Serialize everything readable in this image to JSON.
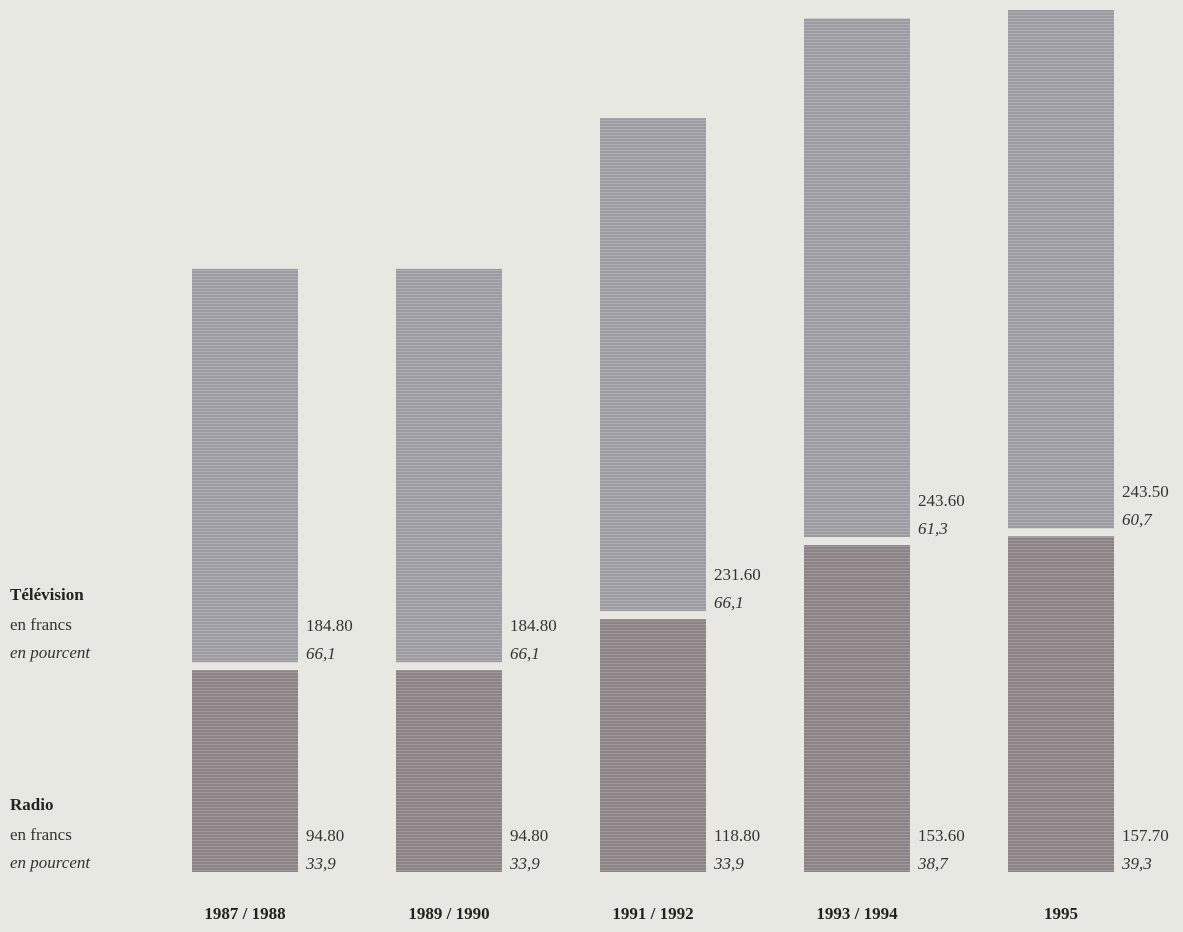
{
  "chart_data": {
    "type": "stacked-bar",
    "categories": [
      "1987 / 1988",
      "1989 / 1990",
      "1991 / 1992",
      "1993 / 1994",
      "1995"
    ],
    "series": [
      {
        "name": "Radio",
        "units": [
          "en francs",
          "en pourcent"
        ],
        "color": "#8b8386",
        "values": [
          94.8,
          94.8,
          118.8,
          153.6,
          157.7
        ],
        "value_labels": [
          "94.80",
          "94.80",
          "118.80",
          "153.60",
          "157.70"
        ],
        "percent": [
          33.9,
          33.9,
          33.9,
          38.7,
          39.3
        ],
        "percent_labels": [
          "33,9",
          "33,9",
          "33,9",
          "38,7",
          "39,3"
        ]
      },
      {
        "name": "Télévision",
        "units": [
          "en francs",
          "en pourcent"
        ],
        "color": "#9c9ca2",
        "values": [
          184.8,
          184.8,
          231.6,
          243.6,
          243.5
        ],
        "value_labels": [
          "184.80",
          "184.80",
          "231.60",
          "243.60",
          "243.50"
        ],
        "percent": [
          66.1,
          66.1,
          66.1,
          61.3,
          60.7
        ],
        "percent_labels": [
          "66,1",
          "66,1",
          "66,1",
          "61,3",
          "60,7"
        ]
      }
    ]
  }
}
